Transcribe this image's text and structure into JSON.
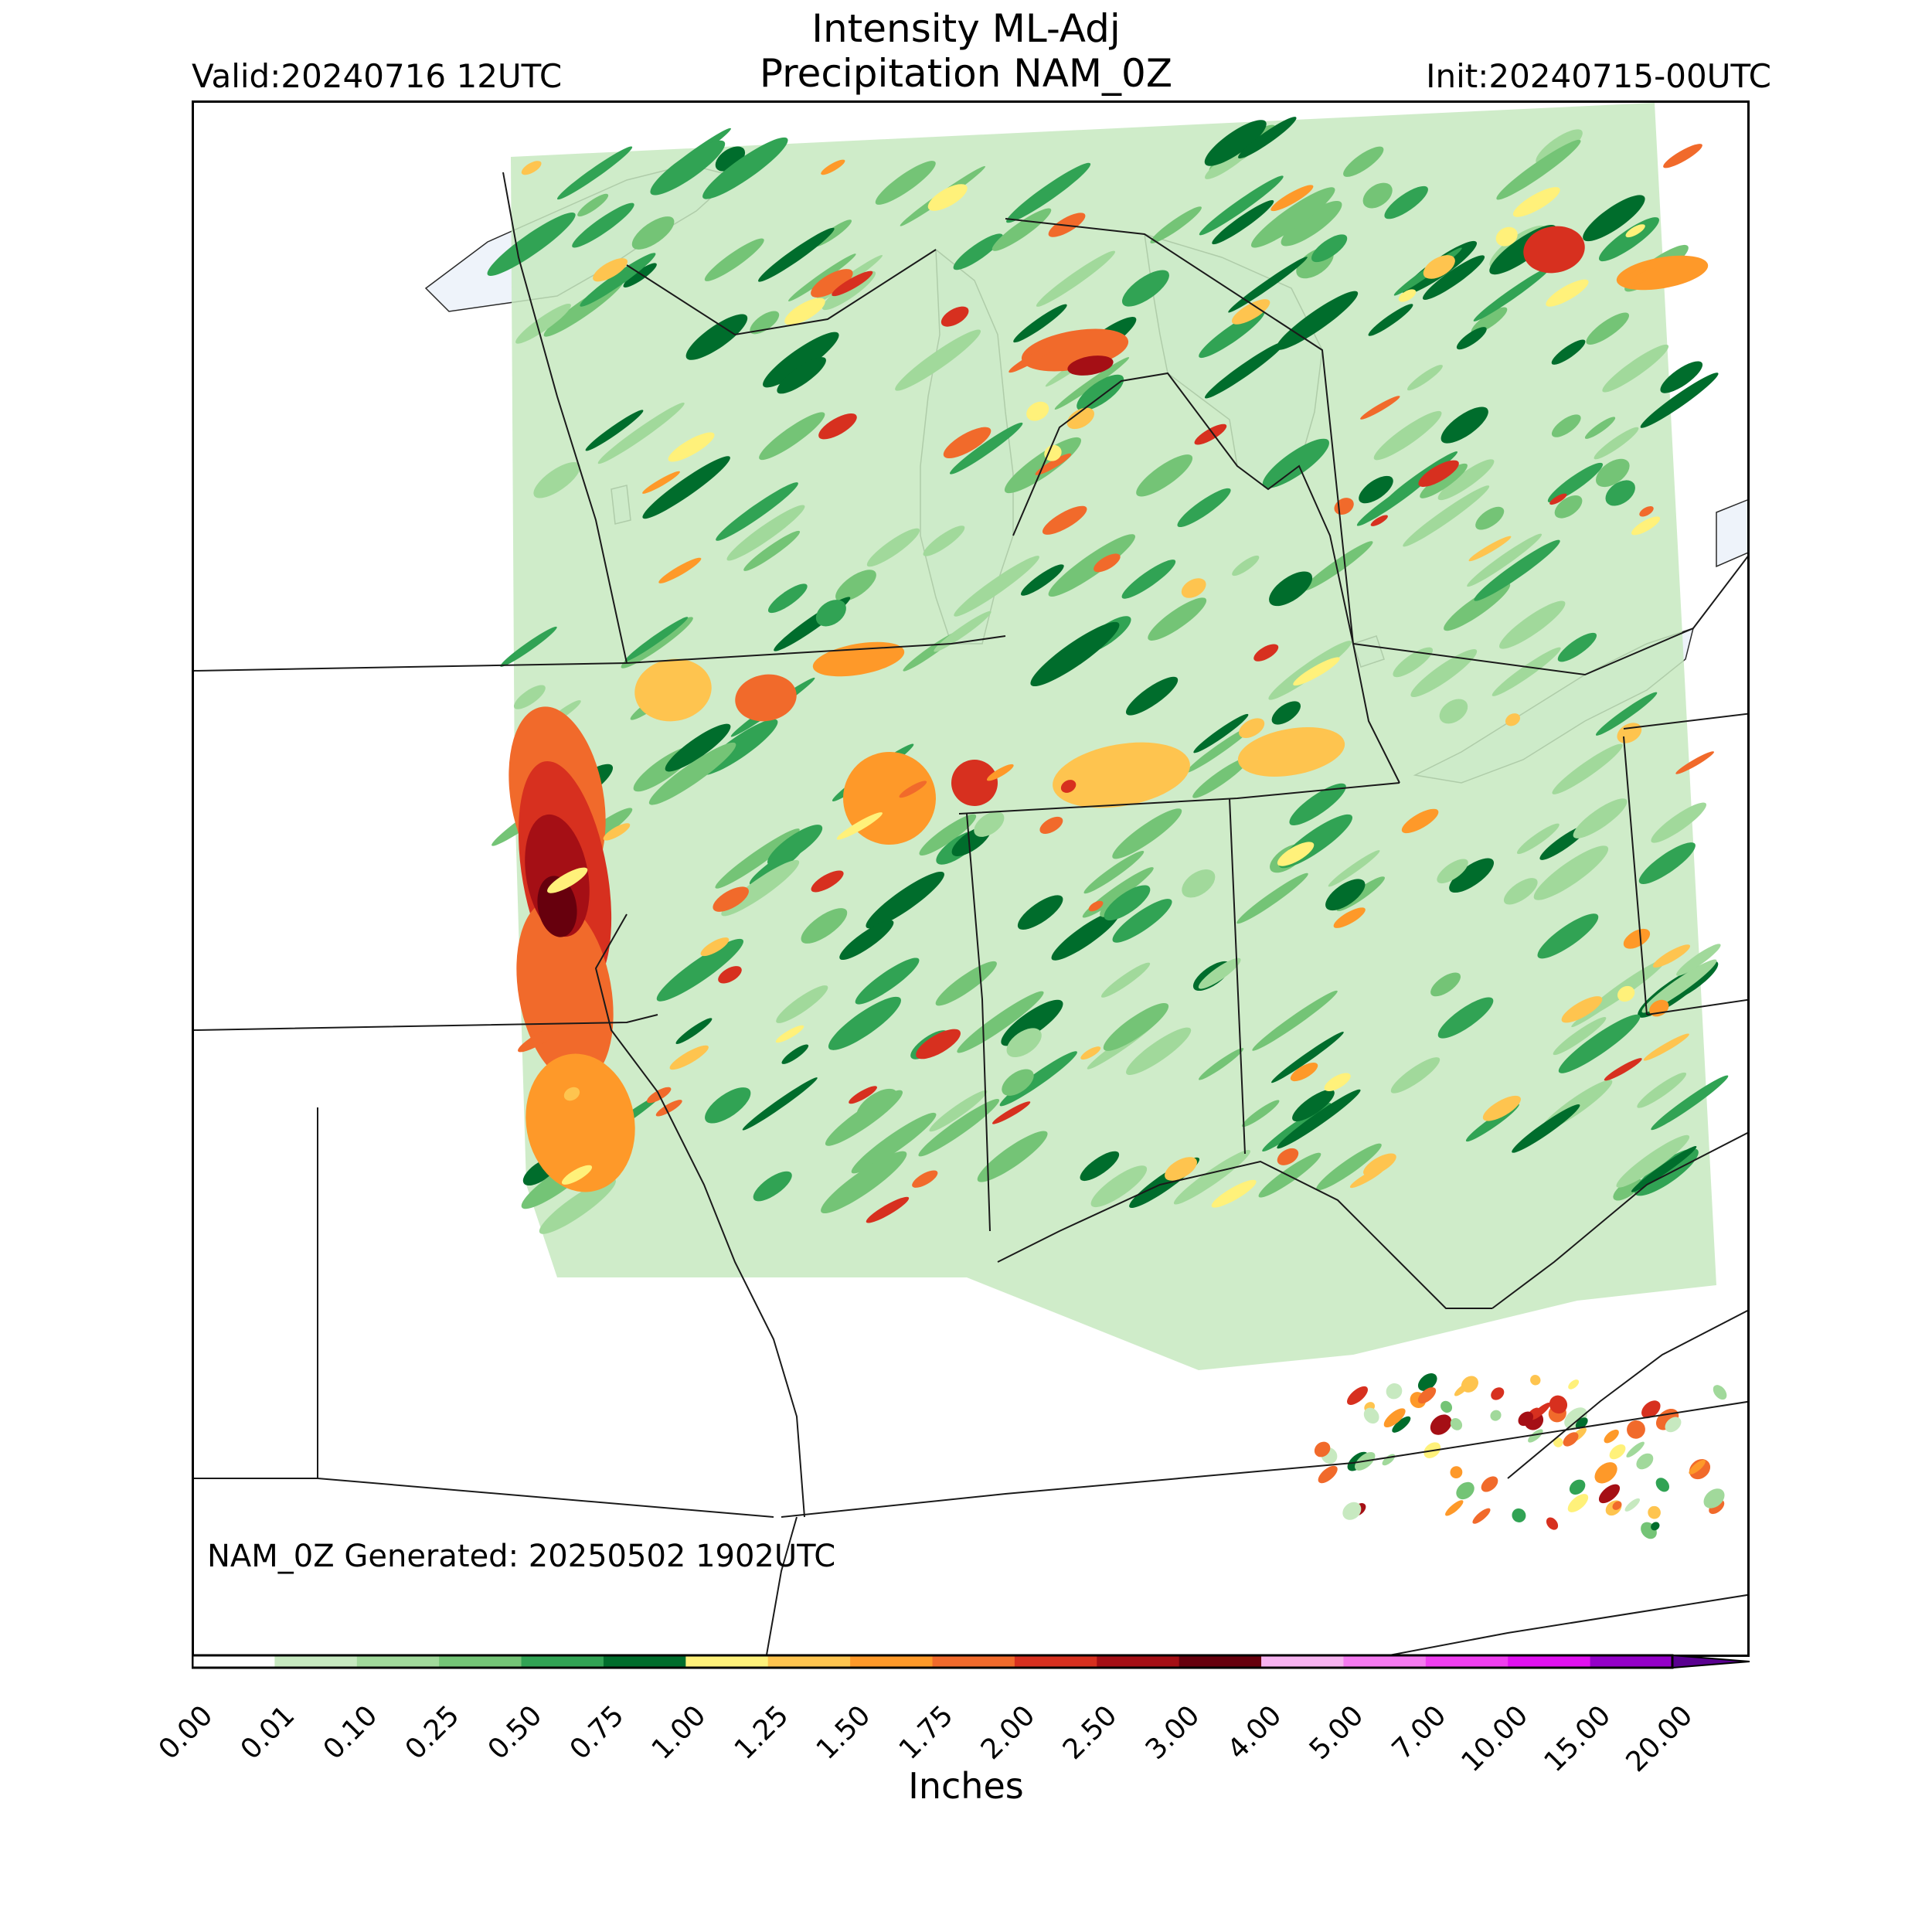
{
  "header": {
    "title_line1": "Intensity ML-Adj",
    "title_line2": "Precipitation NAM_0Z",
    "valid": "Valid:20240716 12UTC",
    "init": "Init:20240715-00UTC"
  },
  "footer_note": "NAM_0Z Generated: 20250502 1902UTC",
  "colorbar": {
    "label": "Inches",
    "ticks": [
      "0.00",
      "0.01",
      "0.10",
      "0.25",
      "0.50",
      "0.75",
      "1.00",
      "1.25",
      "1.50",
      "1.75",
      "2.00",
      "2.50",
      "3.00",
      "4.00",
      "5.00",
      "7.00",
      "10.00",
      "15.00",
      "20.00"
    ],
    "colors": [
      "#ffffff",
      "#c7e9c0",
      "#a1d99b",
      "#74c476",
      "#31a354",
      "#006d2c",
      "#fff17a",
      "#fec44f",
      "#fe9929",
      "#f16a2b",
      "#d7301f",
      "#a50f15",
      "#67000d",
      "#f7b3f0",
      "#f57af0",
      "#f03ef0",
      "#e010f0",
      "#9400c8"
    ],
    "extend_color": "#5a0090"
  },
  "map": {
    "land_color": "#ffffff",
    "lake_color": "#eef3fa",
    "border_color": "#1a1a1a",
    "rain_palette": [
      "#c7e9c0",
      "#a1d99b",
      "#74c476",
      "#31a354",
      "#006d2c",
      "#fff17a",
      "#fec44f",
      "#fe9929",
      "#f16a2b",
      "#d7301f",
      "#a50f15",
      "#67000d"
    ]
  }
}
